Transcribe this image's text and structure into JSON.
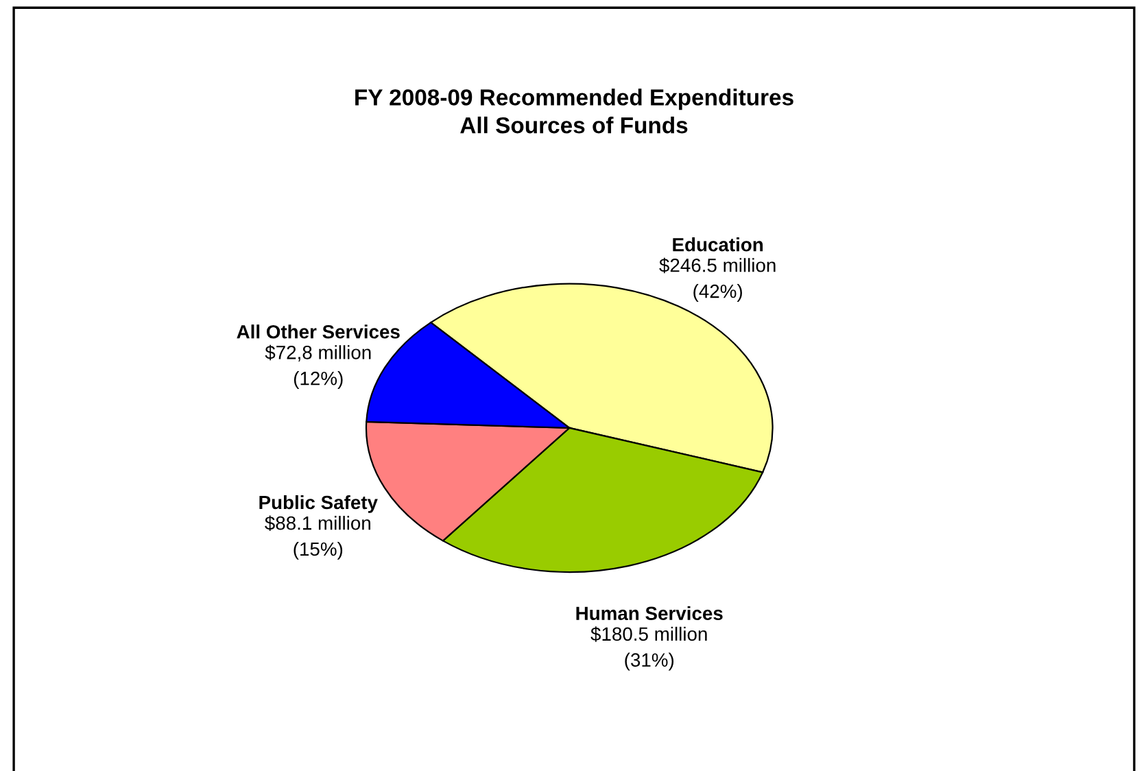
{
  "chart_data": {
    "type": "pie",
    "title": "FY 2008-09 Recommended Expenditures\nAll Sources of Funds",
    "categories": [
      "Education",
      "Human Services",
      "Public Safety",
      "All Other Services"
    ],
    "values": [
      246.5,
      180.5,
      88.1,
      72.8
    ],
    "colors": [
      "#ffff99",
      "#99cc00",
      "#ff8080",
      "#0000ff"
    ],
    "value_labels": [
      "$246.5 million",
      "$180.5 million",
      "$88.1 million",
      "$72,8 million"
    ],
    "annotations": [
      "(42%)",
      "(31%)",
      "(15%)",
      "(12%)"
    ],
    "legend": false
  }
}
